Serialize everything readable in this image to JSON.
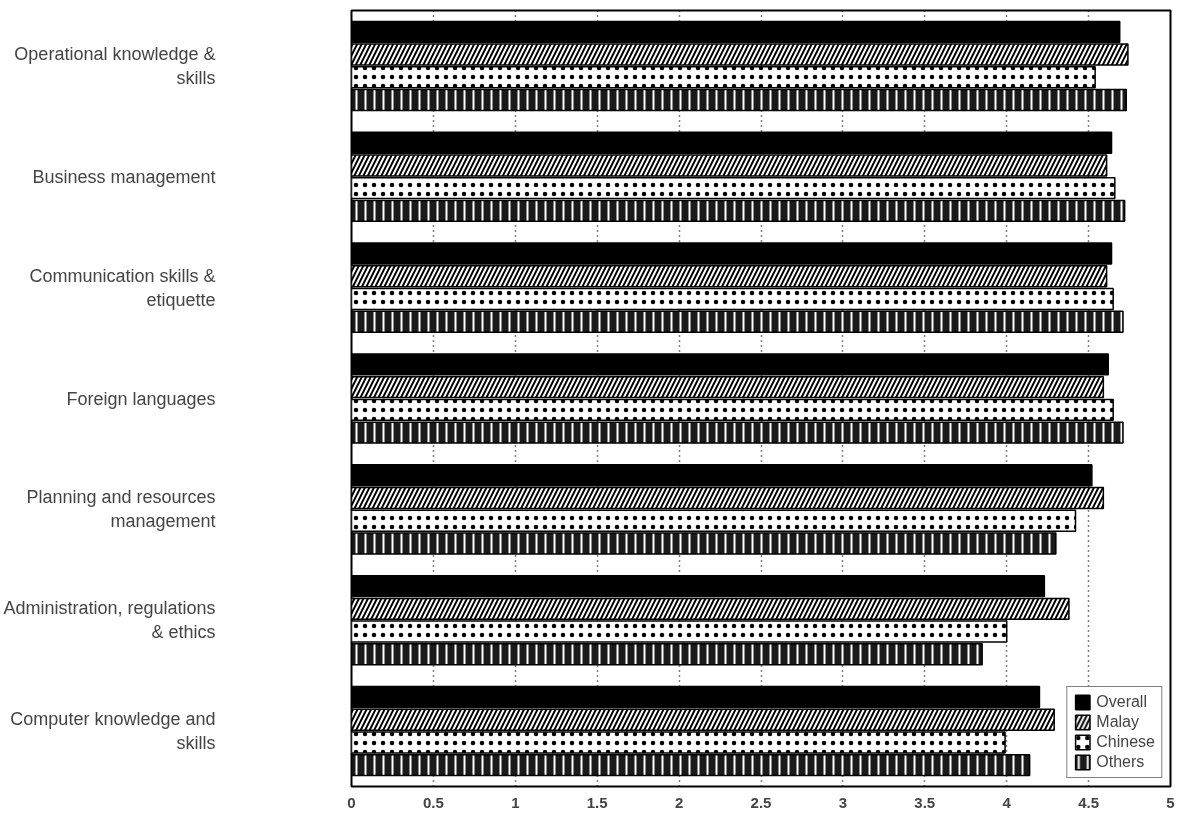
{
  "chart_data": {
    "type": "bar",
    "orientation": "horizontal",
    "categories": [
      "Operational knowledge & skills",
      "Business management",
      "Communication skills & etiquette",
      "Foreign languages",
      "Planning and resources management",
      "Administration, regulations & ethics",
      "Computer knowledge and skills"
    ],
    "series": [
      {
        "name": "Overall",
        "color": "#000000",
        "values": [
          4.69,
          4.64,
          4.64,
          4.62,
          4.52,
          4.23,
          4.2
        ]
      },
      {
        "name": "Malay",
        "color": "#000000",
        "values": [
          4.74,
          4.61,
          4.61,
          4.59,
          4.59,
          4.38,
          4.29
        ]
      },
      {
        "name": "Chinese",
        "color": "#ffffff",
        "values": [
          4.54,
          4.66,
          4.65,
          4.65,
          4.42,
          4.0,
          3.99
        ]
      },
      {
        "name": "Others",
        "color": "#1a1a1a",
        "values": [
          4.73,
          4.72,
          4.71,
          4.71,
          4.3,
          3.85,
          4.14
        ]
      }
    ],
    "xlim": [
      0,
      5
    ],
    "xticks": [
      0,
      0.5,
      1,
      1.5,
      2,
      2.5,
      3,
      3.5,
      4,
      4.5,
      5
    ],
    "grid": "x",
    "legend": "bottom right"
  }
}
